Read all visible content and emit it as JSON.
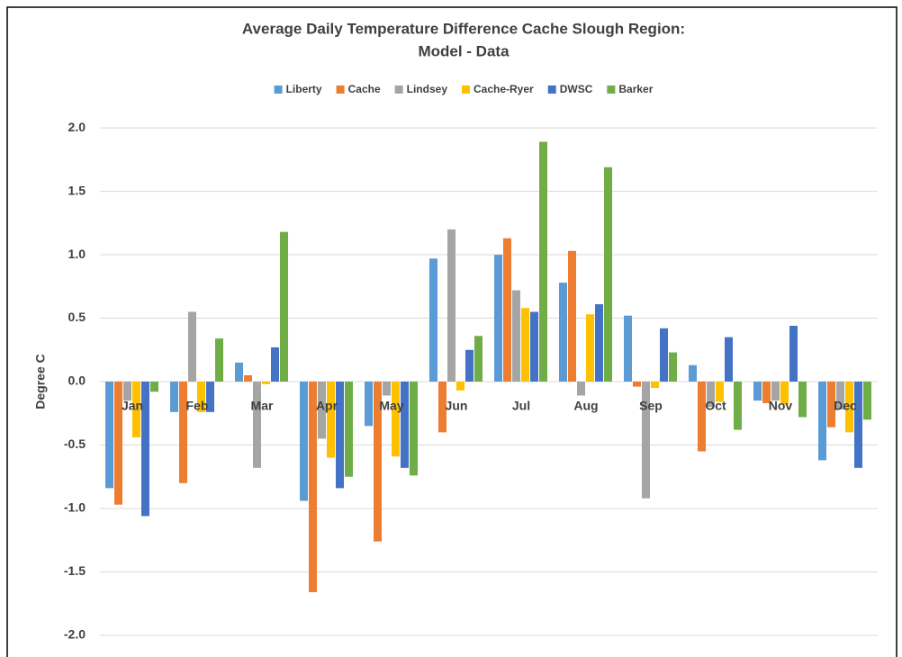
{
  "chart_data": {
    "type": "bar",
    "title": [
      "Average Daily Temperature Difference Cache Slough Region:",
      "Model - Data"
    ],
    "y_label": "Degree C",
    "categories": [
      "Jan",
      "Feb",
      "Mar",
      "Apr",
      "May",
      "Jun",
      "Jul",
      "Aug",
      "Sep",
      "Oct",
      "Nov",
      "Dec"
    ],
    "series": [
      {
        "name": "Liberty",
        "color": "#5b9bd5",
        "values": [
          -0.84,
          -0.24,
          0.15,
          -0.94,
          -0.35,
          0.97,
          1.0,
          0.78,
          0.52,
          0.13,
          -0.15,
          -0.62
        ]
      },
      {
        "name": "Cache",
        "color": "#ed7d31",
        "values": [
          -0.97,
          -0.8,
          0.05,
          -1.66,
          -1.26,
          -0.4,
          1.13,
          1.03,
          -0.04,
          -0.55,
          -0.17,
          -0.36
        ]
      },
      {
        "name": "Lindsey",
        "color": "#a5a5a5",
        "values": [
          -0.15,
          0.55,
          -0.68,
          -0.45,
          -0.11,
          1.2,
          0.72,
          -0.11,
          -0.92,
          -0.2,
          -0.15,
          -0.22
        ]
      },
      {
        "name": "Cache-Ryer",
        "color": "#ffc000",
        "values": [
          -0.44,
          -0.24,
          -0.02,
          -0.6,
          -0.59,
          -0.07,
          0.58,
          0.53,
          -0.05,
          -0.16,
          -0.18,
          -0.4
        ]
      },
      {
        "name": "DWSC",
        "color": "#4472c4",
        "values": [
          -1.06,
          -0.24,
          0.27,
          -0.84,
          -0.68,
          0.25,
          0.55,
          0.61,
          0.42,
          0.35,
          0.44,
          -0.68
        ]
      },
      {
        "name": "Barker",
        "color": "#70ad47",
        "values": [
          -0.08,
          0.34,
          1.18,
          -0.75,
          -0.74,
          0.36,
          1.89,
          1.69,
          0.23,
          -0.38,
          -0.28,
          -0.3
        ]
      }
    ],
    "ylim": [
      -2.1,
      2.1
    ],
    "yticks": [
      {
        "value": -2,
        "label": "-2.0"
      },
      -1.5,
      {
        "value": -1,
        "label": "-1.0"
      },
      -0.5,
      {
        "value": 0,
        "label": "0.0"
      },
      0.5,
      {
        "value": 1,
        "label": "1.0"
      },
      1.5,
      {
        "value": 2,
        "label": "2.0"
      }
    ],
    "grid": true
  }
}
